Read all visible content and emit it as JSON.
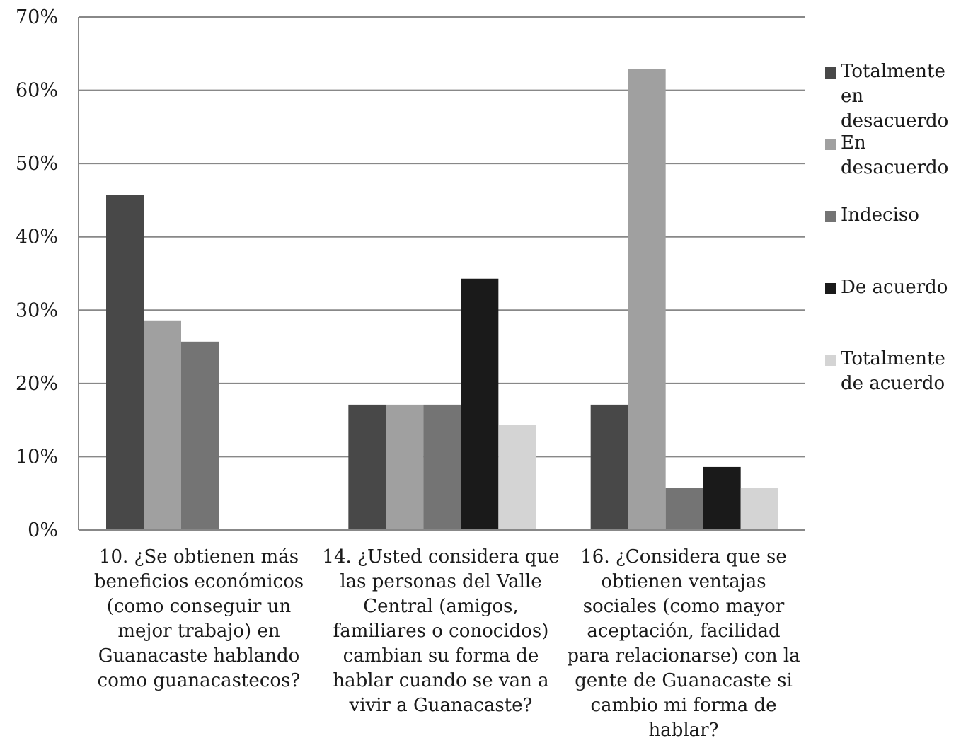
{
  "chart_data": {
    "type": "bar",
    "categories": [
      "10. ¿Se obtienen más beneficios económicos (como conseguir un mejor trabajo) en Guanacaste hablando como guanacastecos?",
      "14. ¿Usted considera que las personas del Valle Central (amigos, familiares o conocidos) cambian su forma de hablar cuando se van a vivir a Guanacaste?",
      "16. ¿Considera que se obtienen ventajas sociales (como mayor aceptación, facilidad para relacionarse) con la gente de Guanacaste si cambio mi forma de hablar?"
    ],
    "series": [
      {
        "name": "Totalmente en desacuerdo",
        "color": "#484848",
        "values": [
          45.7,
          17.1,
          17.1
        ]
      },
      {
        "name": "En desacuerdo",
        "color": "#a0a0a0",
        "values": [
          28.6,
          17.1,
          62.9
        ]
      },
      {
        "name": "Indeciso",
        "color": "#747474",
        "values": [
          25.7,
          17.1,
          5.7
        ]
      },
      {
        "name": "De acuerdo",
        "color": "#1a1a1a",
        "values": [
          0,
          34.3,
          8.6
        ]
      },
      {
        "name": "Totalmente de acuerdo",
        "color": "#d4d4d4",
        "values": [
          0,
          14.3,
          5.7
        ]
      }
    ],
    "yticks": [
      "0%",
      "10%",
      "20%",
      "30%",
      "40%",
      "50%",
      "60%",
      "70%"
    ],
    "ylim": [
      0,
      70
    ],
    "grid": true,
    "legend_position": "right",
    "title": "",
    "xlabel": "",
    "ylabel": ""
  }
}
